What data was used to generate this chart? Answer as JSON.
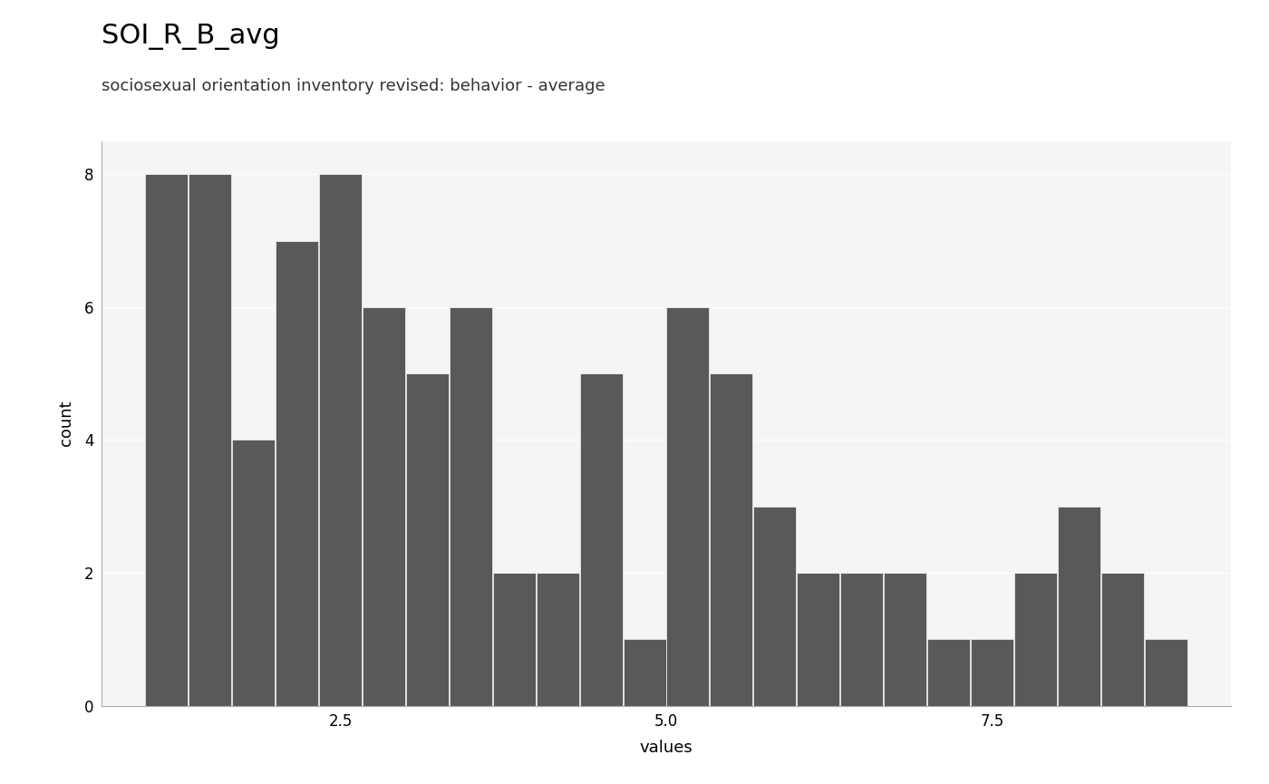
{
  "title": "SOI_R_B_avg",
  "subtitle": "sociosexual orientation inventory revised: behavior - average",
  "xlabel": "values",
  "ylabel": "count",
  "bar_color": "#595959",
  "background_color": "#ffffff",
  "panel_background": "#f5f5f5",
  "grid_color": "#ffffff",
  "bar_edges": [
    1.0,
    1.333,
    1.667,
    2.0,
    2.333,
    2.667,
    3.0,
    3.333,
    3.667,
    4.0,
    4.333,
    4.667,
    5.0,
    5.333,
    5.667,
    6.0,
    6.333,
    6.667,
    7.0,
    7.333,
    7.667,
    8.0,
    8.333,
    8.667,
    9.0
  ],
  "counts": [
    8,
    8,
    4,
    7,
    8,
    6,
    5,
    6,
    2,
    2,
    5,
    1,
    6,
    5,
    3,
    2,
    2,
    2,
    1,
    1,
    2,
    3,
    2,
    1
  ],
  "xlim": [
    0.667,
    9.333
  ],
  "ylim": [
    0,
    8.5
  ],
  "yticks": [
    0,
    2,
    4,
    6,
    8
  ],
  "xticks": [
    2.5,
    5.0,
    7.5
  ],
  "title_fontsize": 22,
  "subtitle_fontsize": 13,
  "axis_label_fontsize": 13,
  "tick_fontsize": 12
}
